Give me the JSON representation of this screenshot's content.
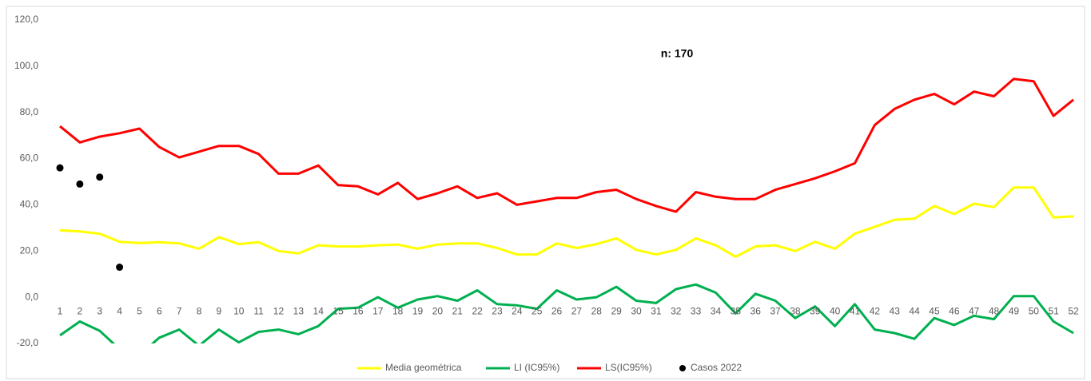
{
  "chart_data": {
    "type": "line",
    "annotation": "n: 170",
    "categories": [
      "1",
      "2",
      "3",
      "4",
      "5",
      "6",
      "7",
      "8",
      "9",
      "10",
      "11",
      "12",
      "13",
      "14",
      "15",
      "16",
      "17",
      "18",
      "19",
      "20",
      "21",
      "22",
      "23",
      "24",
      "25",
      "26",
      "27",
      "28",
      "29",
      "30",
      "31",
      "32",
      "33",
      "34",
      "35",
      "36",
      "37",
      "38",
      "39",
      "40",
      "41",
      "42",
      "43",
      "44",
      "45",
      "46",
      "47",
      "48",
      "49",
      "50",
      "51",
      "52"
    ],
    "series": [
      {
        "name": "Media geométrica",
        "color": "#ffff00",
        "style": "line",
        "values": [
          29,
          28.5,
          27.5,
          24,
          23.5,
          23.8,
          23.3,
          21,
          26,
          23,
          23.8,
          20,
          19,
          22.5,
          22,
          22,
          22.5,
          22.8,
          21,
          22.8,
          23.3,
          23.3,
          21.3,
          18.5,
          18.5,
          23.3,
          21.3,
          23,
          25.5,
          20.5,
          18.5,
          20.5,
          25.5,
          22.5,
          17.5,
          22,
          22.5,
          20,
          24,
          21,
          27.5,
          30.5,
          33.5,
          34,
          39.5,
          36,
          40.5,
          39,
          47.5,
          47.5,
          34.5,
          35
        ]
      },
      {
        "name": "LI (IC95%)",
        "color": "#00b050",
        "style": "line",
        "values": [
          -16.5,
          -10.5,
          -14.5,
          -22.5,
          -25,
          -17.5,
          -14,
          -21,
          -14,
          -19.5,
          -15,
          -14,
          -16,
          -12.5,
          -5,
          -4.5,
          0,
          -4.5,
          -1,
          0.5,
          -1.5,
          3,
          -3,
          -3.5,
          -5,
          3,
          -1,
          0,
          4.5,
          -1.5,
          -2.5,
          3.5,
          5.5,
          2,
          -7,
          1.5,
          -1.5,
          -9,
          -4,
          -12.5,
          -3,
          -14,
          -15.5,
          -18,
          -9,
          -12,
          -8,
          -9.5,
          0.5,
          0.5,
          -10.5,
          -15.5
        ]
      },
      {
        "name": "LS(IC95%)",
        "color": "#ff0000",
        "style": "line",
        "values": [
          74,
          67,
          69.5,
          71,
          73,
          65,
          60.5,
          63,
          65.5,
          65.5,
          62,
          53.5,
          53.5,
          57,
          48.5,
          48,
          44.5,
          49.5,
          42.5,
          45,
          48,
          43,
          45,
          40,
          41.5,
          43,
          43,
          45.5,
          46.5,
          42.5,
          39.5,
          37,
          45.5,
          43.5,
          42.5,
          42.5,
          46.5,
          49,
          51.5,
          54.5,
          58,
          74.5,
          81.5,
          85.5,
          88,
          83.5,
          89,
          87,
          94.5,
          93.5,
          78.5,
          85.5
        ]
      },
      {
        "name": "Casos 2022",
        "color": "#000000",
        "style": "markers",
        "values": [
          56,
          49,
          52,
          13,
          null,
          null,
          null,
          null,
          null,
          null,
          null,
          null,
          null,
          null,
          null,
          null,
          null,
          null,
          null,
          null,
          null,
          null,
          null,
          null,
          null,
          null,
          null,
          null,
          null,
          null,
          null,
          null,
          null,
          null,
          null,
          null,
          null,
          null,
          null,
          null,
          null,
          null,
          null,
          null,
          null,
          null,
          null,
          null,
          null,
          null,
          null,
          null
        ]
      }
    ],
    "ylim": [
      -20,
      120
    ],
    "yticks": [
      {
        "value": -20,
        "label": "-20,0"
      },
      {
        "value": 0,
        "label": "0,0"
      },
      {
        "value": 20,
        "label": "20,0"
      },
      {
        "value": 40,
        "label": "40,0"
      },
      {
        "value": 60,
        "label": "60,0"
      },
      {
        "value": 80,
        "label": "80,0"
      },
      {
        "value": 100,
        "label": "100,0"
      },
      {
        "value": 120,
        "label": "120,0"
      }
    ],
    "grid": false
  }
}
